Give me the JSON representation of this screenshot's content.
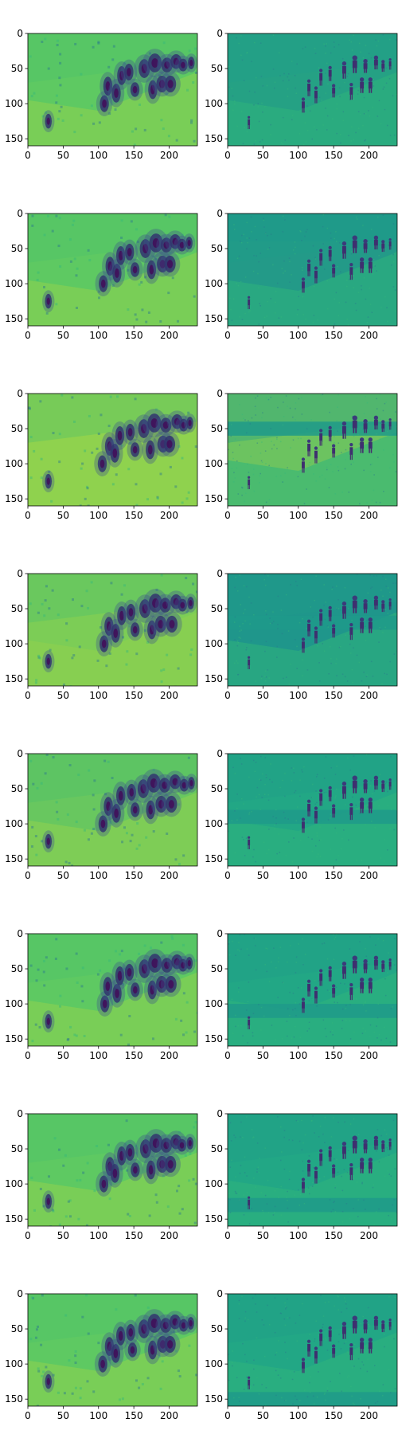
{
  "figure": {
    "rows": 8,
    "cols": 2,
    "colormap": "viridis",
    "colors": {
      "viridis_dark": "#440154",
      "viridis_mid": "#21918c",
      "viridis_light": "#fde725",
      "left_bg": "#57c85f",
      "right_bg": "#22a785"
    }
  },
  "chart_data": {
    "type": "heatmap",
    "layout": "8x2 grid of image panels",
    "image_shape": [
      160,
      240
    ],
    "xlim": [
      0,
      240
    ],
    "ylim": [
      160,
      0
    ],
    "x_ticks": [
      0,
      50,
      100,
      150,
      200
    ],
    "y_ticks": [
      0,
      50,
      100,
      150
    ],
    "x_tick_labels": [
      "0",
      "50",
      "100",
      "150",
      "200"
    ],
    "y_tick_labels": [
      "0",
      "50",
      "100",
      "150"
    ],
    "title": "",
    "xlabel": "",
    "ylabel": "",
    "columns": [
      {
        "description": "blurred reconstruction",
        "base_color": "#57c85f"
      },
      {
        "description": "sharp frame",
        "base_color": "#22a785"
      }
    ],
    "rows": [
      {
        "row": 1,
        "left_tone": "#5ec962",
        "right_tone": "#25a184",
        "right_band": null
      },
      {
        "row": 2,
        "left_tone": "#5ec962",
        "right_tone": "#239a88",
        "right_band": [
          0,
          40
        ]
      },
      {
        "row": 3,
        "left_tone": "#8fd24e",
        "right_tone": "#6cc360",
        "right_band": [
          40,
          60
        ]
      },
      {
        "row": 4,
        "left_tone": "#7ccd56",
        "right_tone": "#1f968b",
        "right_band": [
          60,
          80
        ]
      },
      {
        "row": 5,
        "left_tone": "#68c75f",
        "right_tone": "#22a785",
        "right_band": [
          80,
          100
        ]
      },
      {
        "row": 6,
        "left_tone": "#5ec962",
        "right_tone": "#22a785",
        "right_band": [
          100,
          120
        ]
      },
      {
        "row": 7,
        "left_tone": "#5ec962",
        "right_tone": "#22a785",
        "right_band": [
          120,
          140
        ]
      },
      {
        "row": 8,
        "left_tone": "#5ec962",
        "right_tone": "#22a785",
        "right_band": [
          140,
          160
        ]
      }
    ]
  }
}
